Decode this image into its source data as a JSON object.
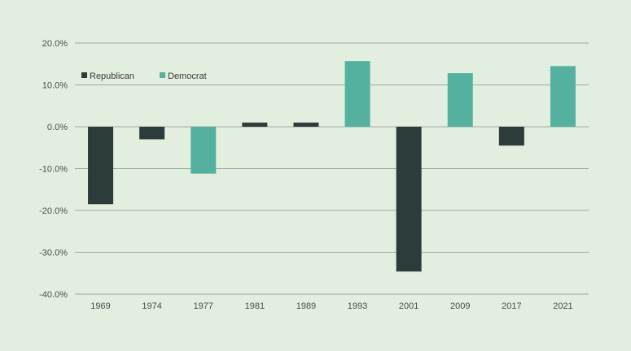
{
  "chart_data": {
    "type": "bar",
    "categories": [
      "1969",
      "1974",
      "1977",
      "1981",
      "1989",
      "1993",
      "2001",
      "2009",
      "2017",
      "2021"
    ],
    "values": [
      -18.5,
      -3.0,
      -11.2,
      1.0,
      1.0,
      15.7,
      -34.6,
      12.8,
      -4.5,
      14.5
    ],
    "parties": [
      "Republican",
      "Republican",
      "Democrat",
      "Republican",
      "Republican",
      "Democrat",
      "Republican",
      "Democrat",
      "Republican",
      "Democrat"
    ],
    "series": [
      {
        "name": "Republican",
        "color": "#2c3c3a"
      },
      {
        "name": "Democrat",
        "color": "#55b19f"
      }
    ],
    "y_ticks": [
      "20.0%",
      "10.0%",
      "0.0%",
      "-10.0%",
      "-20.0%",
      "-30.0%",
      "-40.0%"
    ],
    "ylim": [
      -40,
      20
    ],
    "grid": true,
    "legend_position": "top-left",
    "title": "",
    "xlabel": "",
    "ylabel": ""
  }
}
